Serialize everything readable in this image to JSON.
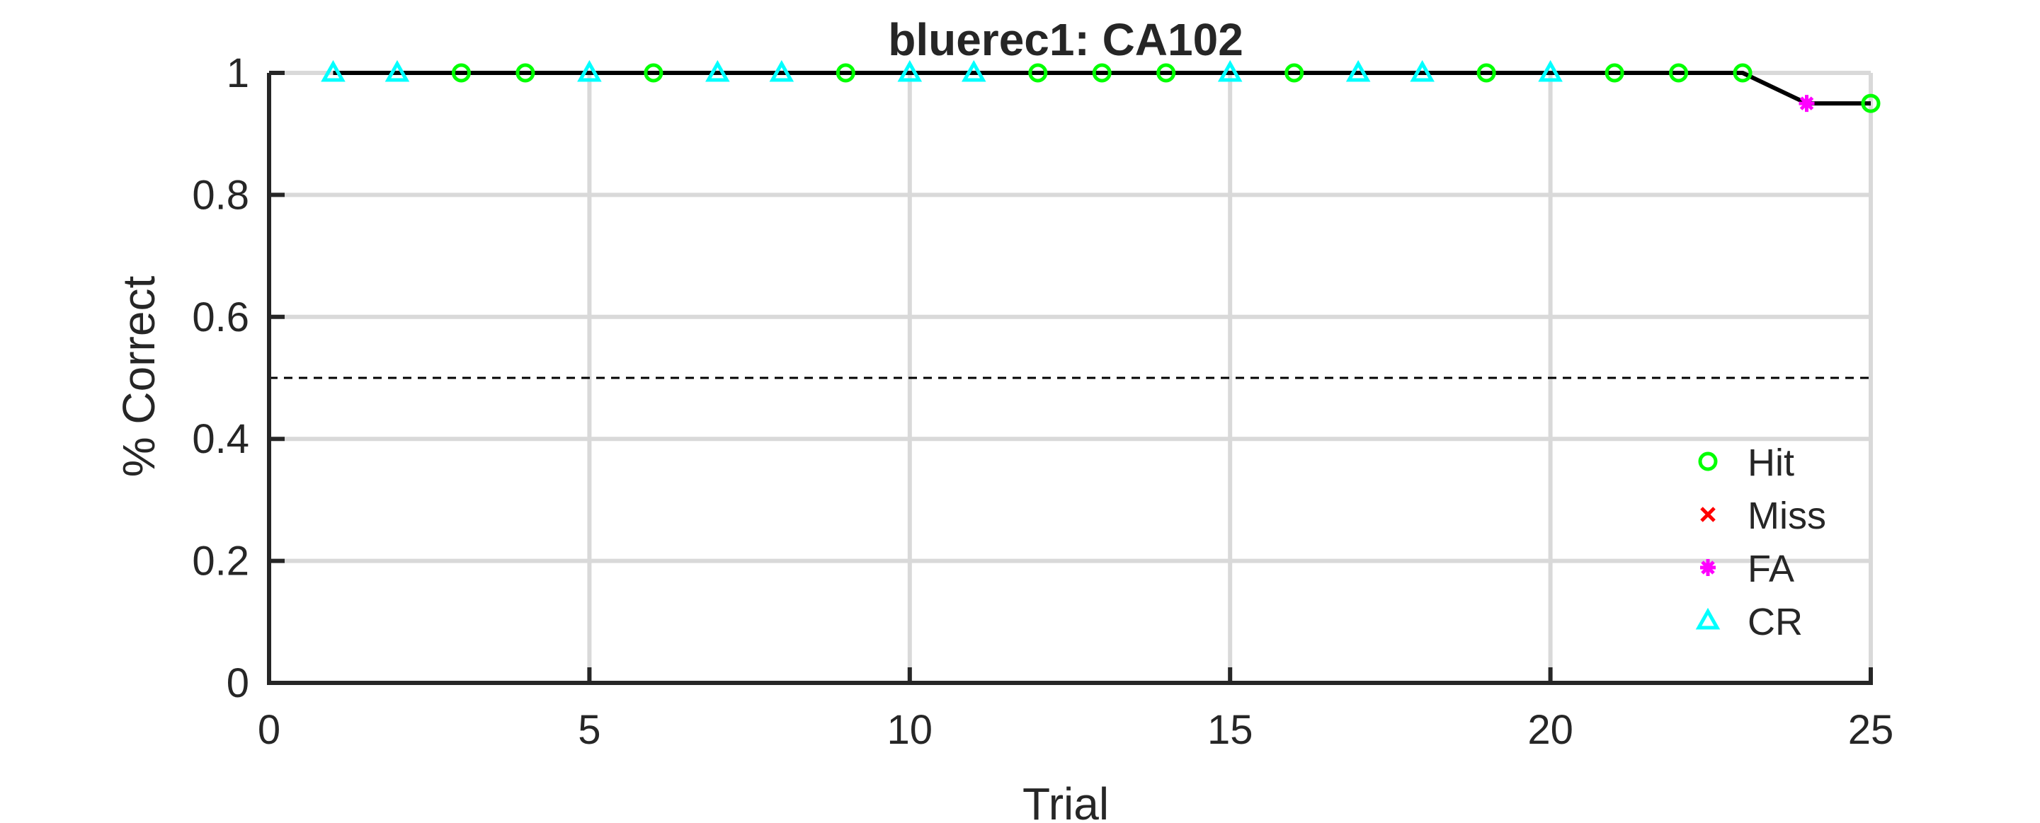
{
  "chart_data": {
    "type": "line",
    "title": "bluerec1: CA102",
    "xlabel": "Trial",
    "ylabel": "% Correct",
    "xlim": [
      0,
      25
    ],
    "ylim": [
      0,
      1
    ],
    "xticks": [
      0,
      5,
      10,
      15,
      20,
      25
    ],
    "yticks": [
      0,
      0.2,
      0.4,
      0.6,
      0.8,
      1
    ],
    "xtick_labels": [
      "0",
      "5",
      "10",
      "15",
      "20",
      "25"
    ],
    "ytick_labels": [
      "0",
      "0.2",
      "0.4",
      "0.6",
      "0.8",
      "1"
    ],
    "grid": true,
    "reference_line": 0.5,
    "legend_position": "lower-right",
    "line_color": "#000000",
    "trials": [
      1,
      2,
      3,
      4,
      5,
      6,
      7,
      8,
      9,
      10,
      11,
      12,
      13,
      14,
      15,
      16,
      17,
      18,
      19,
      20,
      21,
      22,
      23,
      24,
      25
    ],
    "values": [
      1,
      1,
      1,
      1,
      1,
      1,
      1,
      1,
      1,
      1,
      1,
      1,
      1,
      1,
      1,
      1,
      1,
      1,
      1,
      1,
      1,
      1,
      1,
      0.95,
      0.95
    ],
    "outcomes": [
      "CR",
      "CR",
      "Hit",
      "Hit",
      "CR",
      "Hit",
      "CR",
      "CR",
      "Hit",
      "CR",
      "CR",
      "Hit",
      "Hit",
      "Hit",
      "CR",
      "Hit",
      "CR",
      "CR",
      "Hit",
      "CR",
      "Hit",
      "Hit",
      "Hit",
      "FA",
      "Hit"
    ],
    "legend": [
      {
        "key": "Hit",
        "label": "Hit",
        "marker": "circle",
        "color": "#00ff00"
      },
      {
        "key": "Miss",
        "label": "Miss",
        "marker": "x",
        "color": "#ff0000"
      },
      {
        "key": "FA",
        "label": "FA",
        "marker": "asterisk",
        "color": "#ff00ff"
      },
      {
        "key": "CR",
        "label": "CR",
        "marker": "triangle",
        "color": "#00ffff"
      }
    ]
  }
}
